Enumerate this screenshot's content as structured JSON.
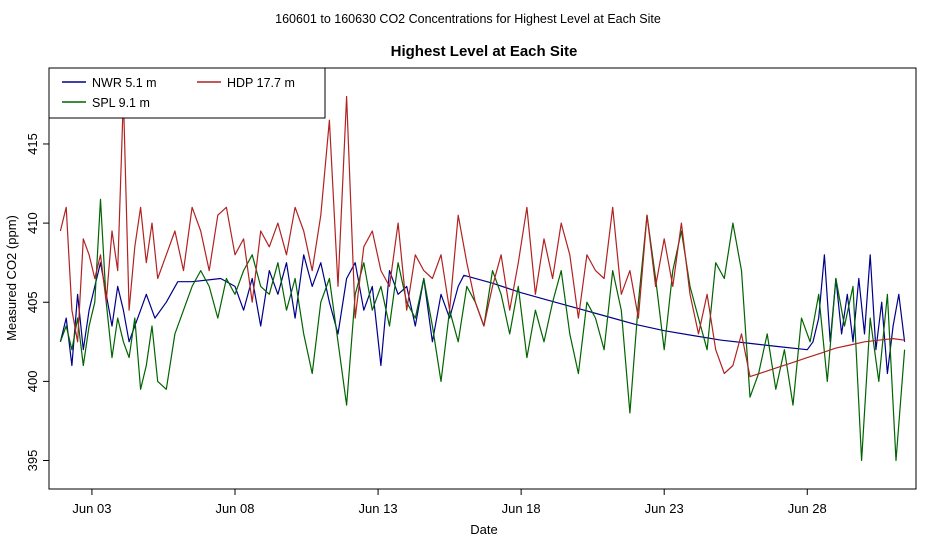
{
  "chart_data": {
    "type": "line",
    "suptitle": "160601  to  160630 CO2 Concentrations for Highest Level at Each Site",
    "title": "Highest Level at Each Site",
    "xlabel": "Date",
    "ylabel": "Measured CO2 (ppm)",
    "xlim": [
      1.5,
      31.8
    ],
    "ylim": [
      393.2,
      419.8
    ],
    "grid": false,
    "legend_position": "top-left",
    "x_ticks": [
      {
        "value": 3,
        "label": "Jun 03"
      },
      {
        "value": 8,
        "label": "Jun 08"
      },
      {
        "value": 13,
        "label": "Jun 13"
      },
      {
        "value": 18,
        "label": "Jun 18"
      },
      {
        "value": 23,
        "label": "Jun 23"
      },
      {
        "value": 28,
        "label": "Jun 28"
      }
    ],
    "y_ticks": [
      {
        "value": 395,
        "label": "395"
      },
      {
        "value": 400,
        "label": "400"
      },
      {
        "value": 405,
        "label": "405"
      },
      {
        "value": 410,
        "label": "410"
      },
      {
        "value": 415,
        "label": "415"
      }
    ],
    "series": [
      {
        "name": "NWR",
        "legend_label": "NWR  5.1 m",
        "color": "#00008b",
        "x": [
          1.9,
          2.1,
          2.3,
          2.5,
          2.7,
          2.9,
          3.1,
          3.3,
          3.5,
          3.7,
          3.9,
          4.1,
          4.3,
          4.5,
          4.7,
          4.9,
          5.2,
          5.6,
          6.0,
          6.5,
          7.0,
          7.5,
          8.0,
          8.3,
          8.6,
          8.9,
          9.2,
          9.5,
          9.8,
          10.1,
          10.4,
          10.7,
          11.0,
          11.3,
          11.6,
          11.9,
          12.2,
          12.5,
          12.8,
          13.1,
          13.4,
          13.7,
          14.0,
          14.3,
          14.6,
          14.9,
          15.2,
          15.5,
          15.8,
          16.0,
          17.0,
          18.0,
          19.0,
          20.0,
          21.0,
          22.0,
          23.0,
          24.0,
          25.0,
          26.0,
          27.0,
          28.0,
          28.2,
          28.4,
          28.6,
          28.8,
          29.0,
          29.2,
          29.4,
          29.6,
          29.8,
          30.0,
          30.2,
          30.4,
          30.6,
          30.8,
          31.0,
          31.2,
          31.4
        ],
        "y": [
          402.5,
          404,
          401,
          405.5,
          402,
          404.5,
          406,
          407.5,
          405.5,
          403.5,
          406,
          404.5,
          402.5,
          403.5,
          404.5,
          405.5,
          404,
          405,
          406.3,
          406.3,
          406.4,
          406.5,
          406,
          404.5,
          406.5,
          403.5,
          407,
          405.5,
          407.5,
          404,
          408,
          406,
          407.5,
          405,
          403,
          406.5,
          407.5,
          404.5,
          406,
          401,
          407,
          405.5,
          406,
          403.5,
          406.5,
          402.5,
          405.5,
          404,
          406,
          406.7,
          406.2,
          405.6,
          405.1,
          404.6,
          404.1,
          403.6,
          403.2,
          402.9,
          402.6,
          402.4,
          402.2,
          402,
          402.5,
          404,
          408,
          402.5,
          406.5,
          403,
          405.5,
          402.5,
          406.5,
          403,
          408,
          402,
          405,
          400.5,
          403.5,
          405.5,
          402.5
        ]
      },
      {
        "name": "SPL",
        "legend_label": "SPL  9.1 m",
        "color": "#006400",
        "x": [
          1.9,
          2.1,
          2.3,
          2.5,
          2.7,
          2.9,
          3.1,
          3.3,
          3.5,
          3.7,
          3.9,
          4.1,
          4.3,
          4.5,
          4.7,
          4.9,
          5.1,
          5.3,
          5.6,
          5.9,
          6.2,
          6.5,
          6.8,
          7.1,
          7.4,
          7.7,
          8.0,
          8.3,
          8.6,
          8.9,
          9.2,
          9.5,
          9.8,
          10.1,
          10.4,
          10.7,
          11.0,
          11.3,
          11.6,
          11.9,
          12.2,
          12.5,
          12.8,
          13.1,
          13.4,
          13.7,
          14.0,
          14.3,
          14.6,
          14.9,
          15.2,
          15.5,
          15.8,
          16.1,
          16.4,
          16.7,
          17.0,
          17.3,
          17.6,
          17.9,
          18.2,
          18.5,
          18.8,
          19.1,
          19.4,
          19.7,
          20.0,
          20.3,
          20.6,
          20.9,
          21.2,
          21.5,
          21.8,
          22.1,
          22.4,
          22.7,
          23.0,
          23.3,
          23.6,
          23.9,
          24.2,
          24.5,
          24.8,
          25.1,
          25.4,
          25.7,
          26.0,
          26.3,
          26.6,
          26.9,
          27.2,
          27.5,
          27.8,
          28.1,
          28.4,
          28.7,
          29.0,
          29.3,
          29.6,
          29.9,
          30.2,
          30.5,
          30.8,
          31.1,
          31.4
        ],
        "y": [
          402.5,
          403.5,
          402,
          404,
          401,
          403.5,
          405,
          411.5,
          405,
          401.5,
          404,
          402.5,
          401.5,
          404,
          399.5,
          401,
          403.5,
          400,
          399.5,
          403,
          404.5,
          406,
          407,
          406,
          404,
          406.5,
          405.5,
          407,
          408,
          406,
          405.5,
          407.5,
          404.5,
          406.5,
          403,
          400.5,
          405,
          406.5,
          402.5,
          398.5,
          405.5,
          407.5,
          404.5,
          406,
          403.5,
          407.5,
          405,
          404,
          406.5,
          403.5,
          400,
          404.5,
          402.5,
          406,
          405,
          403.5,
          407,
          405.5,
          403,
          406,
          401.5,
          404.5,
          402.5,
          405,
          407,
          403,
          400.5,
          405,
          404,
          402,
          407,
          404.5,
          398,
          405,
          410.5,
          406.5,
          402,
          407,
          409.5,
          406,
          404,
          402,
          407.5,
          406.5,
          410,
          407,
          399,
          400.5,
          403,
          399.5,
          402,
          398.5,
          404,
          402.5,
          405.5,
          400,
          406.5,
          403.5,
          406,
          395,
          404,
          400,
          405.5,
          395,
          402
        ]
      },
      {
        "name": "HDP",
        "legend_label": "HDP   17.7 m",
        "color": "#b22222",
        "x": [
          1.9,
          2.1,
          2.3,
          2.5,
          2.7,
          2.9,
          3.1,
          3.3,
          3.5,
          3.7,
          3.9,
          4.1,
          4.3,
          4.5,
          4.7,
          4.9,
          5.1,
          5.3,
          5.6,
          5.9,
          6.2,
          6.5,
          6.8,
          7.1,
          7.4,
          7.7,
          8.0,
          8.3,
          8.6,
          8.9,
          9.2,
          9.5,
          9.8,
          10.1,
          10.4,
          10.7,
          11.0,
          11.3,
          11.6,
          11.9,
          12.2,
          12.5,
          12.8,
          13.1,
          13.4,
          13.7,
          14.0,
          14.3,
          14.6,
          14.9,
          15.2,
          15.5,
          15.8,
          16.1,
          16.4,
          16.7,
          17.0,
          17.3,
          17.6,
          17.9,
          18.2,
          18.5,
          18.8,
          19.1,
          19.4,
          19.7,
          20.0,
          20.3,
          20.6,
          20.9,
          21.2,
          21.5,
          21.8,
          22.1,
          22.4,
          22.7,
          23.0,
          23.3,
          23.6,
          23.9,
          24.2,
          24.5,
          24.8,
          25.1,
          25.4,
          25.7,
          26.0,
          26.5,
          27.0,
          27.5,
          28.0,
          28.5,
          29.0,
          29.5,
          30.0,
          30.5,
          31.0,
          31.4
        ],
        "y": [
          409.5,
          411,
          404.5,
          402.5,
          409,
          408,
          406.5,
          408,
          405,
          409.5,
          407,
          418,
          404.5,
          408.5,
          411,
          407.5,
          410,
          406.5,
          408,
          409.5,
          407,
          411,
          409.5,
          407,
          410.5,
          411,
          408,
          409,
          405,
          409.5,
          408.5,
          410,
          408,
          411,
          409.5,
          407,
          410.5,
          416.5,
          406,
          418,
          404,
          408.5,
          409.5,
          407,
          406,
          410,
          404.5,
          408,
          407,
          406.5,
          408,
          404.5,
          410.5,
          407.5,
          405,
          403.5,
          406,
          408,
          404.5,
          407.5,
          411,
          405.5,
          409,
          406.5,
          410,
          408,
          404,
          408,
          407,
          406.5,
          411,
          405.5,
          407,
          404,
          410.5,
          406,
          409,
          406,
          410,
          405.5,
          403,
          405.5,
          402,
          400.5,
          401,
          403,
          400.3,
          400.6,
          400.9,
          401.2,
          401.5,
          401.8,
          402.1,
          402.3,
          402.5,
          402.6,
          402.7,
          402.6
        ]
      }
    ]
  }
}
